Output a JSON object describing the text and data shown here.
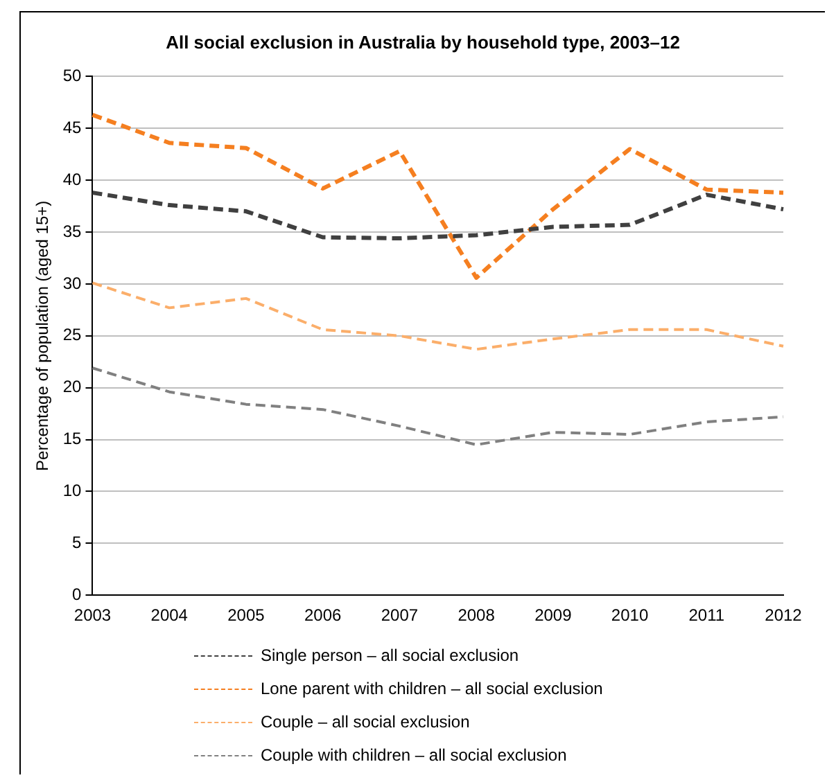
{
  "chart_data": {
    "type": "line",
    "title": "All social exclusion in Australia by household type, 2003–12",
    "ylabel": "Percentage of population (aged 15+)",
    "categories": [
      "2003",
      "2004",
      "2005",
      "2006",
      "2007",
      "2008",
      "2009",
      "2010",
      "2011",
      "2012"
    ],
    "series": [
      {
        "name": "Single person – all social exclusion",
        "color": "#404040",
        "values": [
          38.8,
          37.6,
          37.0,
          34.5,
          34.4,
          34.7,
          35.5,
          35.7,
          38.6,
          37.2
        ]
      },
      {
        "name": "Lone parent with children – all social exclusion",
        "color": "#f57f20",
        "values": [
          46.3,
          43.6,
          43.1,
          39.2,
          42.8,
          30.6,
          37.2,
          43.0,
          39.1,
          38.8
        ]
      },
      {
        "name": "Couple – all social exclusion",
        "color": "#fbae6a",
        "values": [
          30.1,
          27.7,
          28.6,
          25.6,
          25.0,
          23.7,
          24.7,
          25.6,
          25.6,
          24.0
        ]
      },
      {
        "name": "Couple with children – all social exclusion",
        "color": "#808080",
        "values": [
          21.9,
          19.6,
          18.4,
          17.9,
          16.3,
          14.5,
          15.7,
          15.5,
          16.7,
          17.2
        ]
      }
    ],
    "ylim": [
      0,
      50
    ],
    "yticks": [
      0,
      5,
      10,
      15,
      20,
      25,
      30,
      35,
      40,
      45,
      50
    ],
    "grid": "y",
    "legend": "bottom",
    "line_style": "dashed",
    "marker": "none"
  }
}
